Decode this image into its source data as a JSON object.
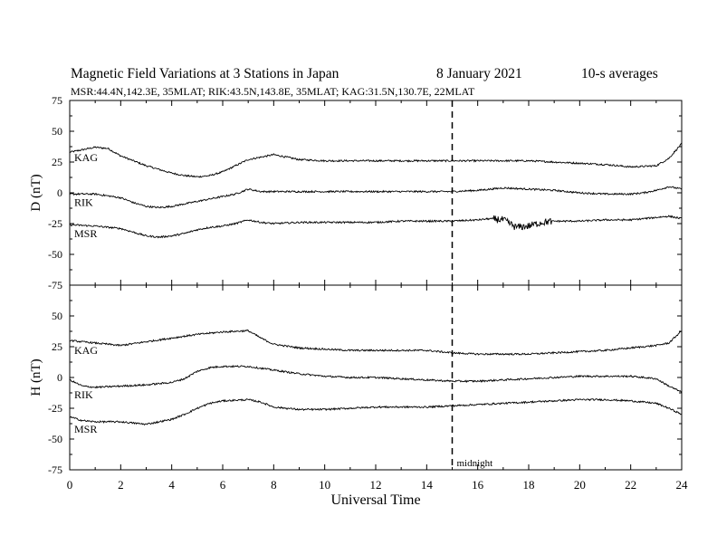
{
  "header": {
    "title": "Magnetic Field Variations at 3 Stations in Japan",
    "date": "8   January  2021",
    "averaging": "10-s averages",
    "stations_line": "MSR:44.4N,142.3E, 35MLAT;  RIK:43.5N,143.8E, 35MLAT;  KAG:31.5N,130.7E, 22MLAT"
  },
  "chart_data": [
    {
      "type": "line",
      "panel": "D",
      "ylabel": "D (nT)",
      "ylim": [
        -75,
        75
      ],
      "yticks": [
        -75,
        -50,
        -25,
        0,
        25,
        50,
        75
      ],
      "xlim": [
        0,
        24
      ],
      "grid": false,
      "series": [
        {
          "name": "KAG",
          "x": [
            0,
            0.5,
            1,
            1.5,
            2,
            2.5,
            3,
            3.5,
            4,
            4.5,
            5,
            5.5,
            6,
            6.5,
            7,
            7.5,
            8,
            8.5,
            9,
            10,
            11,
            12,
            13,
            14,
            15,
            16,
            17,
            18,
            19,
            20,
            21,
            22,
            23,
            23.5,
            24
          ],
          "values": [
            33,
            35,
            37,
            36,
            30,
            26,
            22,
            19,
            16,
            14,
            13,
            14,
            17,
            22,
            27,
            29,
            31,
            29,
            27,
            26,
            26,
            26,
            26,
            26,
            26,
            26,
            26,
            26,
            25,
            24,
            23,
            21,
            22,
            28,
            40
          ]
        },
        {
          "name": "RIK",
          "x": [
            0,
            1,
            2,
            2.5,
            3,
            3.5,
            4,
            4.5,
            5,
            5.5,
            6,
            6.5,
            7,
            7.5,
            8,
            9,
            10,
            11,
            12,
            13,
            14,
            15,
            16,
            16.5,
            17,
            18,
            19,
            20,
            21,
            22,
            22.5,
            23,
            23.5,
            24
          ],
          "values": [
            -1,
            -1,
            -4,
            -8,
            -11,
            -12,
            -11,
            -9,
            -7,
            -5,
            -3,
            -1,
            3,
            1,
            1,
            1,
            1,
            1,
            1,
            1,
            1,
            1,
            2,
            3,
            4,
            3,
            2,
            0,
            -1,
            -1,
            0,
            2,
            5,
            3
          ]
        },
        {
          "name": "MSR",
          "x": [
            0,
            1,
            2,
            2.5,
            3,
            3.5,
            4,
            4.5,
            5,
            5.5,
            6,
            6.5,
            7,
            7.5,
            8,
            9,
            10,
            11,
            12,
            13,
            14,
            15,
            16,
            16.5,
            17,
            17.5,
            18,
            18.5,
            19,
            20,
            21,
            22,
            23,
            23.5,
            24
          ],
          "values": [
            -26,
            -27,
            -29,
            -32,
            -35,
            -36,
            -35,
            -33,
            -30,
            -28,
            -27,
            -25,
            -22,
            -24,
            -25,
            -24,
            -24,
            -24,
            -24,
            -23,
            -23,
            -23,
            -22,
            -21,
            -22,
            -28,
            -27,
            -24,
            -23,
            -23,
            -22,
            -22,
            -20,
            -19,
            -21
          ]
        }
      ],
      "labels": [
        "KAG",
        "RIK",
        "MSR"
      ]
    },
    {
      "type": "line",
      "panel": "H",
      "ylabel": "H (nT)",
      "xlabel": "Universal Time",
      "ylim": [
        -75,
        75
      ],
      "yticks": [
        -75,
        -50,
        -25,
        0,
        25,
        50,
        75
      ],
      "xlim": [
        0,
        24
      ],
      "xticks": [
        0,
        2,
        4,
        6,
        8,
        10,
        12,
        14,
        16,
        18,
        20,
        22,
        24
      ],
      "grid": false,
      "series": [
        {
          "name": "KAG",
          "x": [
            0,
            1,
            2,
            3,
            4,
            5,
            6,
            7,
            7.5,
            8,
            9,
            10,
            11,
            12,
            13,
            14,
            15,
            16,
            17,
            18,
            19,
            20,
            21,
            22,
            23,
            23.5,
            24
          ],
          "values": [
            30,
            28,
            26,
            29,
            32,
            35,
            37,
            38,
            32,
            27,
            24,
            23,
            22,
            22,
            22,
            22,
            20,
            19,
            19,
            19,
            20,
            21,
            22,
            24,
            26,
            28,
            38
          ]
        },
        {
          "name": "RIK",
          "x": [
            0,
            0.5,
            1,
            2,
            3,
            4,
            4.5,
            5,
            5.5,
            6,
            7,
            8,
            9,
            10,
            11,
            12,
            13,
            14,
            15,
            16,
            17,
            18,
            19,
            20,
            21,
            22,
            23,
            23.5,
            24
          ],
          "values": [
            -2,
            -7,
            -8,
            -7,
            -6,
            -4,
            -1,
            5,
            8,
            9,
            9,
            6,
            3,
            1,
            0,
            0,
            -1,
            -2,
            -3,
            -3,
            -2,
            -1,
            0,
            1,
            1,
            1,
            -1,
            -7,
            -12
          ]
        },
        {
          "name": "MSR",
          "x": [
            0,
            0.5,
            1,
            2,
            3,
            4,
            4.5,
            5,
            5.5,
            6,
            7,
            7.5,
            8,
            9,
            10,
            11,
            12,
            13,
            14,
            15,
            16,
            17,
            18,
            19,
            20,
            21,
            22,
            23,
            23.5,
            24
          ],
          "values": [
            -32,
            -35,
            -36,
            -36,
            -38,
            -34,
            -30,
            -25,
            -21,
            -19,
            -18,
            -20,
            -24,
            -26,
            -26,
            -25,
            -24,
            -24,
            -24,
            -23,
            -22,
            -21,
            -20,
            -19,
            -18,
            -18,
            -19,
            -21,
            -25,
            -30
          ]
        }
      ],
      "labels": [
        "KAG",
        "RIK",
        "MSR"
      ]
    }
  ],
  "annotations": {
    "midnight_label": "midnight",
    "midnight_ut": 15
  },
  "colors": {
    "line": "#000000",
    "background": "#ffffff"
  }
}
